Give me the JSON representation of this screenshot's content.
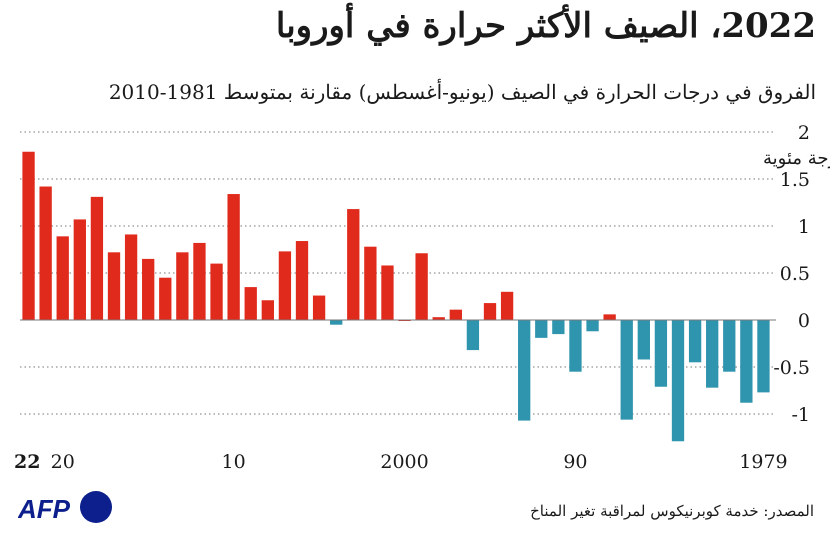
{
  "header": {
    "title": "2022، الصيف الأكثر حرارة في أوروبا",
    "subtitle": "الفروق في درجات الحرارة في الصيف (يونيو-أغسطس) مقارنة بمتوسط 1981-2010"
  },
  "footer": {
    "source": "المصدر: خدمة كوبرنيكوس لمراقبة تغير المناخ",
    "logo_text": "AFP"
  },
  "colors": {
    "positive": "#e02a1b",
    "negative": "#2f94ad",
    "grid": "#777777"
  },
  "chart_data": {
    "type": "bar",
    "title": "2022، الصيف الأكثر حرارة في أوروبا",
    "subtitle": "الفروق في درجات الحرارة في الصيف (يونيو-أغسطس) مقارنة بمتوسط 1981-2010",
    "ylabel": "درجة مئوية",
    "ylim": [
      -1.3,
      2
    ],
    "yticks": [
      {
        "value": 2,
        "label": "2"
      },
      {
        "value": 1.5,
        "label": "1.5"
      },
      {
        "value": 1,
        "label": "1"
      },
      {
        "value": 0.5,
        "label": "0.5"
      },
      {
        "value": 0,
        "label": "0"
      },
      {
        "value": -0.5,
        "label": "-0.5"
      },
      {
        "value": -1,
        "label": "-1"
      }
    ],
    "x_order": "descending-left-to-right",
    "categories": [
      2022,
      2021,
      2020,
      2019,
      2018,
      2017,
      2016,
      2015,
      2014,
      2013,
      2012,
      2011,
      2010,
      2009,
      2008,
      2007,
      2006,
      2005,
      2004,
      2003,
      2002,
      2001,
      2000,
      1999,
      1998,
      1997,
      1996,
      1995,
      1994,
      1993,
      1992,
      1991,
      1990,
      1989,
      1988,
      1987,
      1986,
      1985,
      1984,
      1983,
      1982,
      1981,
      1980,
      1979
    ],
    "values": [
      1.79,
      1.42,
      0.89,
      1.07,
      1.31,
      0.72,
      0.91,
      0.65,
      0.45,
      0.72,
      0.82,
      0.6,
      1.34,
      0.35,
      0.21,
      0.73,
      0.84,
      0.26,
      -0.05,
      1.18,
      0.78,
      0.58,
      0.0,
      0.71,
      0.03,
      0.11,
      -0.32,
      0.18,
      0.3,
      -1.07,
      -0.19,
      -0.15,
      -0.55,
      -0.12,
      0.06,
      -1.06,
      -0.42,
      -0.71,
      -1.29,
      -0.45,
      -0.72,
      -0.55,
      -0.88,
      -0.77
    ],
    "xtick_labels": [
      {
        "year": 2022,
        "label": "22",
        "bold": true
      },
      {
        "year": 2020,
        "label": "20",
        "bold": false
      },
      {
        "year": 2010,
        "label": "10",
        "bold": false
      },
      {
        "year": 2000,
        "label": "2000",
        "bold": false
      },
      {
        "year": 1990,
        "label": "90",
        "bold": false
      },
      {
        "year": 1979,
        "label": "1979",
        "bold": false
      }
    ],
    "grid": true,
    "zero_line": true
  }
}
